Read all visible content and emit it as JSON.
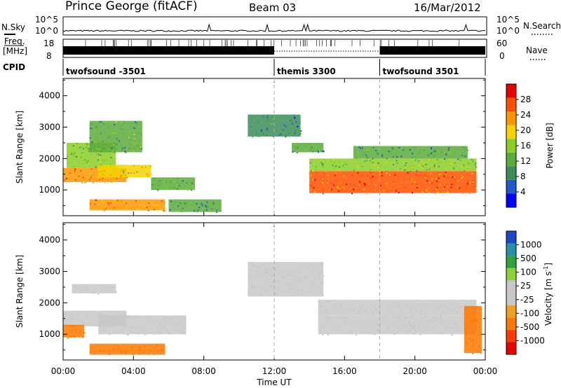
{
  "header": {
    "station": "Prince George (fitACF)",
    "beam": "Beam 03",
    "date": "16/Mar/2012"
  },
  "sky_panel": {
    "left_label": "N.Sky",
    "right_label": "N.Search",
    "left_ticks": [
      "10^5",
      "10^0"
    ],
    "right_ticks": [
      "10^5",
      "10^0"
    ]
  },
  "freq_panel": {
    "left_label_line1": "Freq.",
    "left_label_line2": "[MHz]",
    "right_label": "Nave",
    "left_ticks": [
      "18",
      "8"
    ],
    "right_ticks": [
      "60",
      "0"
    ]
  },
  "cpid_panel": {
    "label": "CPID",
    "segments": [
      {
        "name": "twofsound -3501",
        "start": 0.0,
        "end": 12.0
      },
      {
        "name": "themis 3300",
        "start": 12.0,
        "end": 18.0
      },
      {
        "name": "twofsound 3501",
        "start": 18.0,
        "end": 24.0
      }
    ]
  },
  "x_axis": {
    "label": "Time UT",
    "ticks": [
      "00:00",
      "04:00",
      "08:00",
      "12:00",
      "16:00",
      "20:00",
      "00:00"
    ],
    "tick_hours": [
      0,
      4,
      8,
      12,
      16,
      20,
      24
    ]
  },
  "power_colorbar": {
    "label": "Power [dB]",
    "ticks": [
      "28",
      "24",
      "20",
      "16",
      "12",
      "8",
      "4"
    ],
    "colors": [
      "#0000ff",
      "#1e5acd",
      "#3c8c5a",
      "#5aaa3c",
      "#8ccd28",
      "#f5d200",
      "#ff9600",
      "#ff5000",
      "#e60000"
    ]
  },
  "velocity_colorbar": {
    "label": "Velocity [m s",
    "label_sup": "-1",
    "label_close": "]",
    "ticks": [
      "1000",
      "500",
      "100",
      "25",
      "-25",
      "-100",
      "-500",
      "-1000"
    ],
    "colors": [
      "#1e46c8",
      "#2891aa",
      "#32a03c",
      "#8cd23c",
      "#c8c8c8",
      "#c8c8c8",
      "#f0a028",
      "#ff7800",
      "#ff3c00",
      "#e60000"
    ]
  },
  "chart_data": [
    {
      "type": "heatmap",
      "title": "Power",
      "xlabel": "Time UT",
      "ylabel": "Slant Range [km]",
      "xlim": [
        0,
        24
      ],
      "ylim": [
        180,
        4550
      ],
      "yticks": [
        1000,
        2000,
        3000,
        4000
      ],
      "colorbar": "Power [dB]",
      "regions": [
        {
          "t": [
            0.0,
            3.6
          ],
          "range": [
            1250,
            1700
          ],
          "value": 24
        },
        {
          "t": [
            0.2,
            3.0
          ],
          "range": [
            1700,
            2500
          ],
          "value": 14
        },
        {
          "t": [
            1.5,
            4.5
          ],
          "range": [
            2200,
            3200
          ],
          "value": 12
        },
        {
          "t": [
            2.0,
            5.0
          ],
          "range": [
            1400,
            1800
          ],
          "value": 20
        },
        {
          "t": [
            5.0,
            7.5
          ],
          "range": [
            1000,
            1400
          ],
          "value": 12
        },
        {
          "t": [
            1.5,
            5.8
          ],
          "range": [
            350,
            700
          ],
          "value": 24
        },
        {
          "t": [
            6.0,
            9.0
          ],
          "range": [
            300,
            700
          ],
          "value": 10
        },
        {
          "t": [
            10.5,
            13.5
          ],
          "range": [
            2700,
            3400
          ],
          "value": 8
        },
        {
          "t": [
            13.0,
            14.8
          ],
          "range": [
            2200,
            2500
          ],
          "value": 10
        },
        {
          "t": [
            14.0,
            23.5
          ],
          "range": [
            900,
            1600
          ],
          "value": 26
        },
        {
          "t": [
            14.0,
            23.5
          ],
          "range": [
            1600,
            2000
          ],
          "value": 14
        },
        {
          "t": [
            16.5,
            23.0
          ],
          "range": [
            2000,
            2400
          ],
          "value": 10
        }
      ]
    },
    {
      "type": "heatmap",
      "title": "Velocity",
      "xlabel": "Time UT",
      "ylabel": "Slant Range [km]",
      "xlim": [
        0,
        24
      ],
      "ylim": [
        180,
        4550
      ],
      "yticks": [
        1000,
        2000,
        3000,
        4000
      ],
      "colorbar": "Velocity [m s-1]",
      "regions": [
        {
          "t": [
            0.0,
            3.6
          ],
          "range": [
            1250,
            1750
          ],
          "value": 0
        },
        {
          "t": [
            0.5,
            3.0
          ],
          "range": [
            2300,
            2600
          ],
          "value": 0
        },
        {
          "t": [
            2.0,
            7.0
          ],
          "range": [
            1000,
            1600
          ],
          "value": 0
        },
        {
          "t": [
            1.5,
            5.8
          ],
          "range": [
            350,
            700
          ],
          "value": -300
        },
        {
          "t": [
            0.0,
            1.2
          ],
          "range": [
            900,
            1300
          ],
          "value": -150
        },
        {
          "t": [
            10.5,
            14.8
          ],
          "range": [
            2200,
            3300
          ],
          "value": 0
        },
        {
          "t": [
            14.5,
            23.5
          ],
          "range": [
            1000,
            1600
          ],
          "value": 0
        },
        {
          "t": [
            14.5,
            23.5
          ],
          "range": [
            1600,
            2100
          ],
          "value": 0
        },
        {
          "t": [
            22.8,
            23.8
          ],
          "range": [
            400,
            1900
          ],
          "value": -200
        }
      ]
    }
  ]
}
